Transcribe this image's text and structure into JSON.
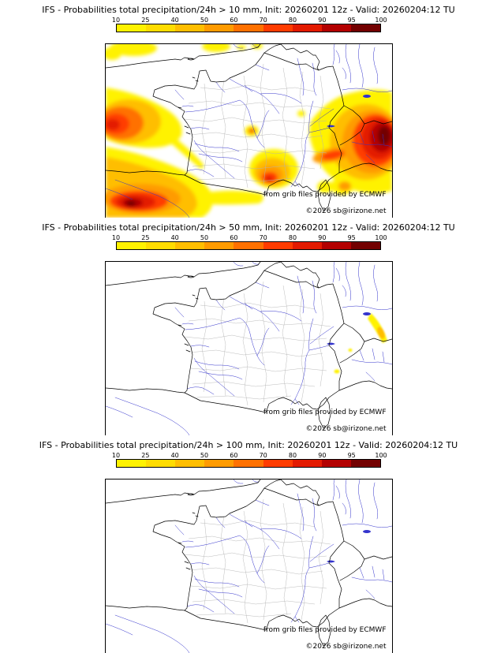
{
  "colorbar": {
    "tick_labels": [
      "10",
      "25",
      "40",
      "50",
      "60",
      "70",
      "80",
      "90",
      "95",
      "100"
    ],
    "segment_colors": [
      "#fff200",
      "#ffdc00",
      "#ffbe00",
      "#ff9b00",
      "#ff7100",
      "#ff3c00",
      "#e31a00",
      "#b30000",
      "#730000"
    ],
    "border_color": "#000000"
  },
  "map_style": {
    "coast_border_color": "#000000",
    "river_color": "#3333cc",
    "department_boundary_color": "#b4b4b4",
    "background": "#ffffff"
  },
  "panels": [
    {
      "threshold_mm": 10,
      "title": "IFS - Probabilities total precipitation/24h > 10 mm, Init: 20260201 12z - Valid: 20260204:12 TU",
      "credit_provider": "from grib files provided by ECMWF",
      "credit_copyright": "©2026 sb@irizone.net"
    },
    {
      "threshold_mm": 50,
      "title": "IFS - Probabilities total precipitation/24h > 50 mm, Init: 20260201 12z - Valid: 20260204:12 TU",
      "credit_provider": "from grib files provided by ECMWF",
      "credit_copyright": "©2026 sb@irizone.net"
    },
    {
      "threshold_mm": 100,
      "title": "IFS - Probabilities total precipitation/24h > 100 mm, Init: 20260201 12z - Valid: 20260204:12 TU",
      "credit_provider": "from grib files provided by ECMWF",
      "credit_copyright": "©2026 sb@irizone.net"
    }
  ],
  "chart_data": [
    {
      "type": "heatmap",
      "title": "IFS - Probabilities total precipitation/24h > 10 mm, Init: 20260201 12z - Valid: 20260204:12 TU",
      "variable": "probability of 24h total precipitation exceeding 10 mm (%)",
      "legend_thresholds": [
        10,
        25,
        40,
        50,
        60,
        70,
        80,
        90,
        95,
        100
      ],
      "legend_position": "top",
      "regions": [
        {
          "area": "Atlantic / Bay of Biscay west of Brittany",
          "peak_probability_pct": 90
        },
        {
          "area": "Northern Spain and western Pyrenees",
          "peak_probability_pct": 100
        },
        {
          "area": "Gulf of Lion / Languedoc coast",
          "peak_probability_pct": 90
        },
        {
          "area": "Ligurian Sea / Gulf of Genoa / NW Italy",
          "peak_probability_pct": 100
        },
        {
          "area": "Southern Alps and French Riviera band",
          "peak_probability_pct": 80
        },
        {
          "area": "English Channel scattered patches",
          "peak_probability_pct": 25
        },
        {
          "area": "Isolated spot over Massif Central",
          "peak_probability_pct": 90
        }
      ]
    },
    {
      "type": "heatmap",
      "title": "IFS - Probabilities total precipitation/24h > 50 mm, Init: 20260201 12z - Valid: 20260204:12 TU",
      "variable": "probability of 24h total precipitation exceeding 50 mm (%)",
      "legend_thresholds": [
        10,
        25,
        40,
        50,
        60,
        70,
        80,
        90,
        95,
        100
      ],
      "legend_position": "top",
      "regions": [
        {
          "area": "Alps along French-Italian border (narrow streak)",
          "peak_probability_pct": 40
        },
        {
          "area": "Tiny spot inland of Riviera",
          "peak_probability_pct": 10
        }
      ]
    },
    {
      "type": "heatmap",
      "title": "IFS - Probabilities total precipitation/24h > 100 mm, Init: 20260201 12z - Valid: 20260204:12 TU",
      "variable": "probability of 24h total precipitation exceeding 100 mm (%)",
      "legend_thresholds": [
        10,
        25,
        40,
        50,
        60,
        70,
        80,
        90,
        95,
        100
      ],
      "legend_position": "top",
      "regions": []
    }
  ]
}
